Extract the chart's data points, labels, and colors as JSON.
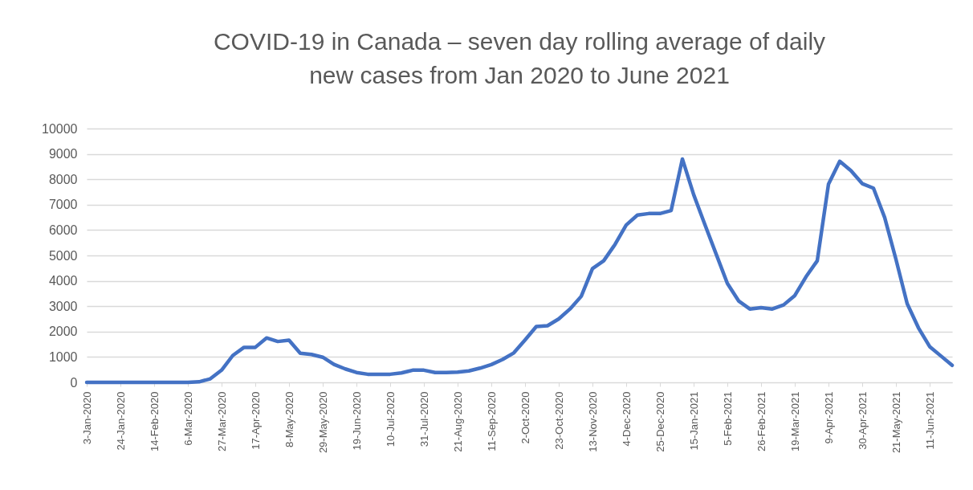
{
  "chart_data": {
    "type": "line",
    "title": "COVID-19 in Canada – seven day rolling average of daily new cases from Jan 2020 to June 2021",
    "categories": [
      "3-Jan-2020",
      null,
      null,
      "24-Jan-2020",
      null,
      null,
      "14-Feb-2020",
      null,
      null,
      "6-Mar-2020",
      null,
      null,
      "27-Mar-2020",
      null,
      null,
      "17-Apr-2020",
      null,
      null,
      "8-May-2020",
      null,
      null,
      "29-May-2020",
      null,
      null,
      "19-Jun-2020",
      null,
      null,
      "10-Jul-2020",
      null,
      null,
      "31-Jul-2020",
      null,
      null,
      "21-Aug-2020",
      null,
      null,
      "11-Sep-2020",
      null,
      null,
      "2-Oct-2020",
      null,
      null,
      "23-Oct-2020",
      null,
      null,
      "13-Nov-2020",
      null,
      null,
      "4-Dec-2020",
      null,
      null,
      "25-Dec-2020",
      null,
      null,
      "15-Jan-2021",
      null,
      null,
      "5-Feb-2021",
      null,
      null,
      "26-Feb-2021",
      null,
      null,
      "19-Mar-2021",
      null,
      null,
      "9-Apr-2021",
      null,
      null,
      "30-Apr-2021",
      null,
      null,
      "21-May-2021",
      null,
      null,
      "11-Jun-2021",
      null,
      null
    ],
    "series": [
      {
        "color": "#4472c4",
        "values": [
          0,
          0,
          0,
          0,
          0,
          0,
          0,
          0,
          0,
          0,
          20,
          140,
          480,
          1060,
          1380,
          1380,
          1750,
          1610,
          1660,
          1150,
          1100,
          990,
          710,
          530,
          390,
          320,
          320,
          320,
          370,
          480,
          480,
          390,
          390,
          400,
          450,
          560,
          700,
          900,
          1160,
          1670,
          2200,
          2230,
          2500,
          2890,
          3390,
          4480,
          4790,
          5430,
          6200,
          6590,
          6650,
          6650,
          6770,
          8800,
          7400,
          6220,
          5060,
          3900,
          3210,
          2890,
          2940,
          2890,
          3050,
          3420,
          4160,
          4790,
          7810,
          8710,
          8340,
          7830,
          7650,
          6490,
          4850,
          3100,
          2150,
          1410,
          1040,
          670
        ]
      }
    ],
    "ylim": [
      0,
      10000
    ],
    "yticks": [
      0,
      1000,
      2000,
      3000,
      4000,
      5000,
      6000,
      7000,
      8000,
      9000,
      10000
    ],
    "grid": "y"
  }
}
